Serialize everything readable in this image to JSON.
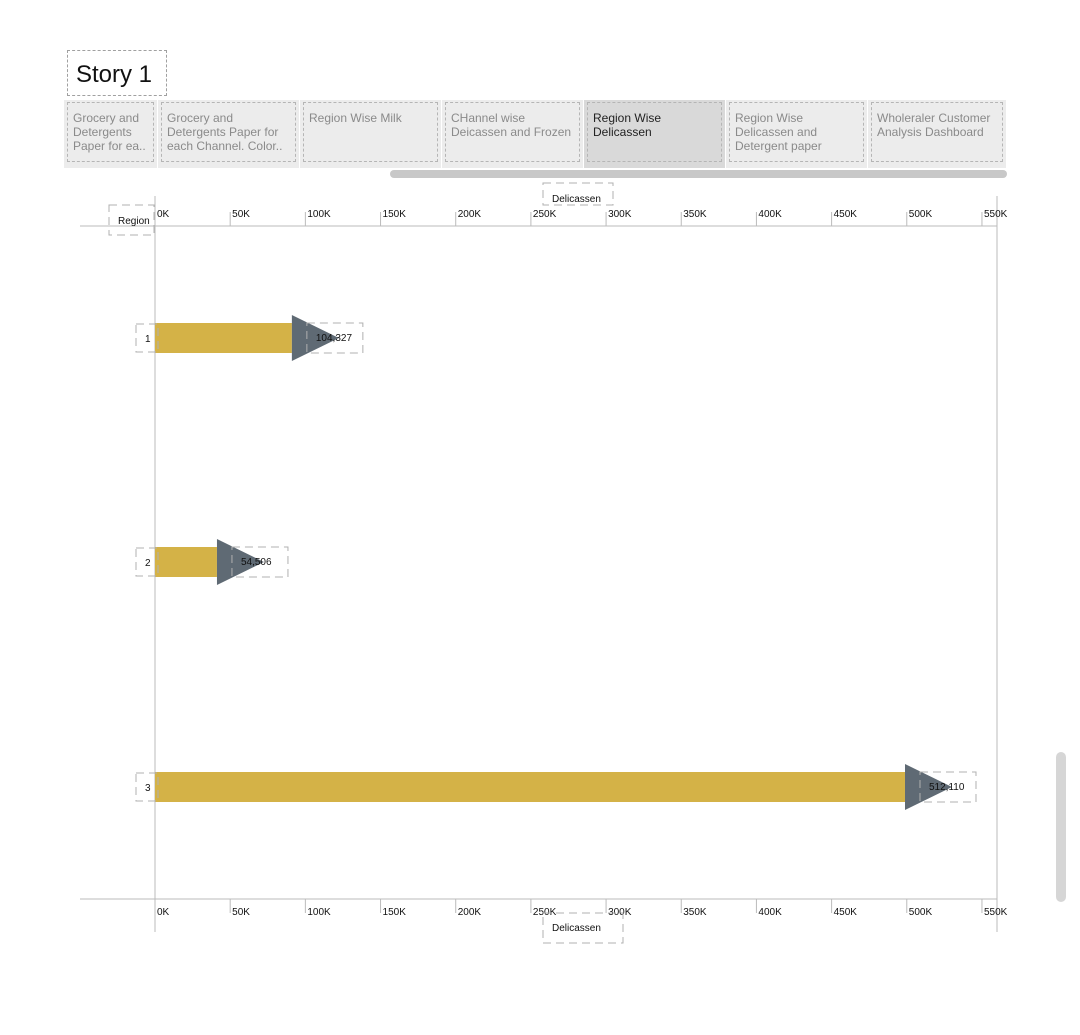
{
  "story": {
    "title": "Story 1"
  },
  "tabs": [
    {
      "label": "Grocery and Detergents Paper for ea..",
      "active": false
    },
    {
      "label": "Grocery and Detergents Paper for each Channel.  Color..",
      "active": false
    },
    {
      "label": "Region Wise Milk",
      "active": false
    },
    {
      "label": "CHannel wise Deicassen and Frozen",
      "active": false
    },
    {
      "label": "Region Wise Delicassen",
      "active": true
    },
    {
      "label": "Region Wise Delicassen and Detergent paper",
      "active": false
    },
    {
      "label": "Wholeraler Customer Analysis Dashboard",
      "active": false
    }
  ],
  "chart_data": {
    "type": "bar",
    "orientation": "horizontal",
    "title": "",
    "xlabel": "Delicassen",
    "ylabel": "Region",
    "categories": [
      "1",
      "2",
      "3"
    ],
    "values": [
      104327,
      54506,
      512110
    ],
    "data_labels": [
      "104,327",
      "54,506",
      "512,110"
    ],
    "xlim": [
      0,
      560000
    ],
    "ticks": [
      0,
      50000,
      100000,
      150000,
      200000,
      250000,
      300000,
      350000,
      400000,
      450000,
      500000,
      550000
    ],
    "tick_labels": [
      "0K",
      "50K",
      "100K",
      "150K",
      "200K",
      "250K",
      "300K",
      "350K",
      "400K",
      "450K",
      "500K",
      "550K"
    ],
    "colors": {
      "bar": "#d4b247",
      "arrow": "#5f6a74",
      "axis": "#bbbbbb"
    }
  }
}
